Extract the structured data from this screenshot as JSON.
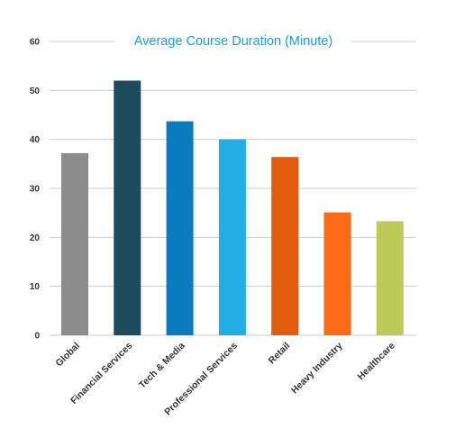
{
  "chart_data": {
    "type": "bar",
    "title": "Average Course Duration (Minute)",
    "xlabel": "",
    "ylabel": "",
    "ylim": [
      0,
      60
    ],
    "yticks": [
      0,
      10,
      20,
      30,
      40,
      50,
      60
    ],
    "grid": true,
    "legend": "none",
    "categories": [
      "Global",
      "Financial Services",
      "Tech & Media",
      "Professional Services",
      "Retail",
      "Heavy Industry",
      "Healthcare"
    ],
    "values": [
      37.2,
      52,
      43.7,
      40,
      36.4,
      25.1,
      23.3
    ],
    "colors": [
      "#8c8c8c",
      "#1e4b5e",
      "#0a7bbd",
      "#21ade6",
      "#e25c0e",
      "#ff6b14",
      "#bccb58"
    ],
    "title_color": "#1a9ee0",
    "grid_color": "#cccccc"
  }
}
